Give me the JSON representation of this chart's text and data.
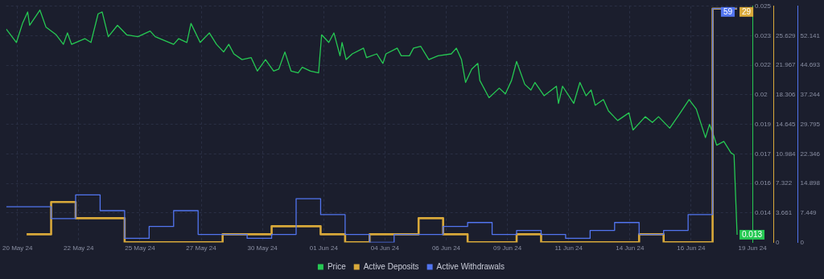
{
  "chart_data": {
    "type": "line",
    "grid": true,
    "legend": "bottom",
    "xlim": [
      "--05-19T13:00",
      "--06-19T00:00"
    ],
    "xticks": [
      {
        "value": "--05-20T00:00",
        "label": "20 May 24"
      },
      {
        "value": "--05-22T12:00",
        "label": "22 May 24"
      },
      {
        "value": "--05-25T00:00",
        "label": "25 May 24"
      },
      {
        "value": "--05-27T12:00",
        "label": "27 May 24"
      },
      {
        "value": "--05-30T00:00",
        "label": "30 May 24"
      },
      {
        "value": "--06-01T12:00",
        "label": "01 Jun 24"
      },
      {
        "value": "--06-04T00:00",
        "label": "04 Jun 24"
      },
      {
        "value": "--06-06T12:00",
        "label": "06 Jun 24"
      },
      {
        "value": "--06-09T00:00",
        "label": "09 Jun 24"
      },
      {
        "value": "--06-11T12:00",
        "label": "11 Jun 24"
      },
      {
        "value": "--06-14T00:00",
        "label": "14 Jun 24"
      },
      {
        "value": "--06-16T12:00",
        "label": "16 Jun 24"
      },
      {
        "value": "--06-19T00:00",
        "label": "19 Jun 24"
      }
    ],
    "ylim": [
      0.0126,
      0.025
    ],
    "yticks": [
      {
        "value": 0.01415,
        "label": "0.014"
      },
      {
        "value": 0.0157,
        "label": "0.016"
      },
      {
        "value": 0.01725,
        "label": "0.017"
      },
      {
        "value": 0.0188,
        "label": "0.019"
      },
      {
        "value": 0.02035,
        "label": "0.02"
      },
      {
        "value": 0.0219,
        "label": "0.022"
      },
      {
        "value": 0.02345,
        "label": "0.023"
      },
      {
        "value": 0.025,
        "label": "0.025"
      }
    ],
    "y2lim": [
      0,
      29.29
    ],
    "y2ticks": [
      0,
      3.661,
      7.322,
      10.984,
      14.645,
      18.306,
      21.967,
      25.629
    ],
    "y3lim": [
      0,
      59.59
    ],
    "y3ticks": [
      0,
      7.449,
      14.898,
      22.346,
      29.795,
      37.244,
      44.693,
      52.141
    ],
    "series": [
      {
        "name": "Price",
        "color": "#26c953",
        "x": [
          "--05-19T13:00",
          "--05-19T23:00",
          "--05-20T05:00",
          "--05-20T10:00",
          "--05-20T12:00",
          "--05-20T22:00",
          "--05-21T04:00",
          "--05-21T14:00",
          "--05-21T21:00",
          "--05-22T01:00",
          "--05-22T05:00",
          "--05-22T18:00",
          "--05-23T00:00",
          "--05-23T07:00",
          "--05-23T11:00",
          "--05-23T17:00",
          "--05-24T02:00",
          "--05-24T11:00",
          "--05-24T22:00",
          "--05-25T10:00",
          "--05-25T15:00",
          "--05-26T09:00",
          "--05-26T14:00",
          "--05-26T22:00",
          "--05-27T02:00",
          "--05-27T11:00",
          "--05-27T20:00",
          "--05-28T03:00",
          "--05-28T10:00",
          "--05-28T15:00",
          "--05-28T20:00",
          "--05-29T04:00",
          "--05-29T13:00",
          "--05-29T19:00",
          "--05-30T03:00",
          "--05-30T11:00",
          "--05-30T16:00",
          "--05-30T22:00",
          "--05-31T04:00",
          "--05-31T11:00",
          "--05-31T15:00",
          "--05-31T23:00",
          "--06-01T07:00",
          "--06-01T10:00",
          "--06-01T17:00",
          "--06-01T22:00",
          "--06-02T04:00",
          "--06-02T06:00",
          "--06-02T10:00",
          "--06-02T16:00",
          "--06-03T03:00",
          "--06-03T06:00",
          "--06-03T16:00",
          "--06-03T22:00",
          "--06-04T01:00",
          "--06-04T12:00",
          "--06-04T16:00",
          "--06-05T00:00",
          "--06-05T04:00",
          "--06-05T11:00",
          "--06-05T19:00",
          "--06-06T04:00",
          "--06-06T17:00",
          "--06-06T22:00",
          "--06-07T03:00",
          "--06-07T07:00",
          "--06-07T13:00",
          "--06-07T19:00",
          "--06-07T21:00",
          "--06-08T06:00",
          "--06-08T16:00",
          "--06-08T22:00",
          "--06-09T04:00",
          "--06-09T09:00",
          "--06-09T17:00",
          "--06-09T23:00",
          "--06-10T03:00",
          "--06-10T12:00",
          "--06-11T00:00",
          "--06-11T02:00",
          "--06-11T06:00",
          "--06-11T17:00",
          "--06-11T23:00",
          "--06-12T05:00",
          "--06-12T10:00",
          "--06-12T14:00",
          "--06-12T22:00",
          "--06-13T03:00",
          "--06-13T12:00",
          "--06-13T23:00",
          "--06-14T03:00",
          "--06-14T15:00",
          "--06-14T22:00",
          "--06-15T04:00",
          "--06-15T15:00",
          "--06-16T00:00",
          "--06-16T10:00",
          "--06-16T17:00",
          "--06-17T02:00",
          "--06-17T06:00",
          "--06-17T10:00",
          "--06-17T13:00",
          "--06-17T20:00",
          "--06-18T03:00",
          "--06-18T06:00",
          "--06-18T09:00"
        ],
        "values": [
          0.0238,
          0.0231,
          0.0241,
          0.0247,
          0.024,
          0.0248,
          0.0239,
          0.0235,
          0.023,
          0.0236,
          0.023,
          0.0233,
          0.0231,
          0.0246,
          0.0247,
          0.0234,
          0.024,
          0.0235,
          0.0234,
          0.0237,
          0.0234,
          0.023,
          0.0233,
          0.0231,
          0.0241,
          0.0231,
          0.0236,
          0.023,
          0.0226,
          0.023,
          0.0225,
          0.0222,
          0.0223,
          0.0216,
          0.0222,
          0.0216,
          0.0217,
          0.0226,
          0.0216,
          0.0215,
          0.0218,
          0.0216,
          0.0215,
          0.0235,
          0.0231,
          0.0236,
          0.0224,
          0.0231,
          0.0222,
          0.0225,
          0.0228,
          0.0223,
          0.0225,
          0.022,
          0.0225,
          0.0228,
          0.0224,
          0.0224,
          0.0228,
          0.0229,
          0.0222,
          0.0224,
          0.0225,
          0.0228,
          0.0222,
          0.021,
          0.0217,
          0.022,
          0.0211,
          0.0202,
          0.0207,
          0.0204,
          0.0211,
          0.0221,
          0.0209,
          0.0206,
          0.021,
          0.0203,
          0.0208,
          0.0199,
          0.0208,
          0.0199,
          0.021,
          0.0203,
          0.0206,
          0.0198,
          0.0201,
          0.0195,
          0.019,
          0.0194,
          0.0185,
          0.0192,
          0.0189,
          0.0192,
          0.0186,
          0.0193,
          0.0201,
          0.0196,
          0.0181,
          0.0188,
          0.0182,
          0.0177,
          0.0179,
          0.0173,
          0.0172,
          0.013
        ],
        "value_labels": [
          null,
          null,
          null,
          null,
          null,
          null,
          null,
          null,
          null,
          null,
          null,
          null,
          null,
          null,
          null,
          null,
          null,
          null,
          null,
          null,
          null,
          null,
          null,
          null,
          null,
          null,
          null,
          null,
          null,
          null,
          null,
          null,
          null,
          null,
          null,
          null,
          null,
          null,
          null,
          null,
          null,
          null,
          null,
          null,
          null,
          null,
          null,
          null,
          null,
          null,
          null,
          null,
          null,
          null,
          null,
          null,
          null,
          null,
          null,
          null,
          null,
          null,
          null,
          null,
          null,
          null,
          null,
          null,
          null,
          null,
          null,
          null,
          null,
          null,
          null,
          null,
          null,
          null,
          null,
          null,
          null,
          null,
          null,
          null,
          null,
          null,
          null,
          null,
          null,
          null,
          null,
          null,
          null,
          null,
          null,
          null,
          null,
          null,
          null,
          null,
          null,
          null,
          null,
          null,
          null,
          "0.013"
        ]
      },
      {
        "name": "Active Deposits",
        "type": "step",
        "axis": "y2",
        "color": "#d9a93a",
        "x": [
          "--05-20T09:00",
          "--05-21T09:00",
          "--05-22T09:00",
          "--05-23T09:00",
          "--05-24T09:00",
          "--05-25T09:00",
          "--05-26T09:00",
          "--05-27T09:00",
          "--05-28T09:00",
          "--05-29T09:00",
          "--05-30T09:00",
          "--05-31T09:00",
          "--06-01T09:00",
          "--06-02T09:00",
          "--06-03T09:00",
          "--06-04T09:00",
          "--06-05T09:00",
          "--06-06T09:00",
          "--06-07T09:00",
          "--06-08T09:00",
          "--06-09T09:00",
          "--06-10T09:00",
          "--06-11T09:00",
          "--06-12T09:00",
          "--06-13T09:00",
          "--06-14T09:00",
          "--06-15T09:00",
          "--06-16T09:00",
          "--06-17T09:00",
          "--06-18T09:00"
        ],
        "values": [
          1,
          5,
          3,
          3,
          0,
          0,
          0,
          0,
          1,
          1,
          2,
          2,
          1,
          0,
          1,
          1,
          3,
          1,
          0,
          0,
          1,
          0,
          0,
          0,
          0,
          1,
          0,
          0,
          29,
          29
        ],
        "value_labels": [
          null,
          null,
          null,
          null,
          null,
          null,
          null,
          null,
          null,
          null,
          null,
          null,
          null,
          null,
          null,
          null,
          null,
          null,
          null,
          null,
          null,
          null,
          null,
          null,
          null,
          null,
          null,
          null,
          null,
          "29"
        ]
      },
      {
        "name": "Active Withdrawals",
        "type": "step",
        "axis": "y3",
        "color": "#5275f0",
        "x": [
          "--05-19T13:00",
          "--05-20T09:00",
          "--05-21T09:00",
          "--05-22T09:00",
          "--05-23T09:00",
          "--05-24T09:00",
          "--05-25T09:00",
          "--05-26T09:00",
          "--05-27T09:00",
          "--05-28T09:00",
          "--05-29T09:00",
          "--05-30T09:00",
          "--05-31T09:00",
          "--06-01T09:00",
          "--06-02T09:00",
          "--06-03T09:00",
          "--06-04T09:00",
          "--06-05T09:00",
          "--06-06T09:00",
          "--06-07T09:00",
          "--06-08T09:00",
          "--06-09T09:00",
          "--06-10T09:00",
          "--06-11T09:00",
          "--06-12T09:00",
          "--06-13T09:00",
          "--06-14T09:00",
          "--06-15T09:00",
          "--06-16T09:00",
          "--06-17T09:00",
          "--06-18T09:00"
        ],
        "values": [
          9,
          9,
          6,
          12,
          8,
          1,
          4,
          8,
          2,
          2,
          1,
          2,
          11,
          7,
          2,
          0,
          2,
          2,
          4,
          5,
          2,
          3,
          2,
          1,
          3,
          5,
          2,
          3,
          7,
          59,
          59
        ],
        "value_labels": [
          null,
          null,
          null,
          null,
          null,
          null,
          null,
          null,
          null,
          null,
          null,
          null,
          null,
          null,
          null,
          null,
          null,
          null,
          null,
          null,
          null,
          null,
          null,
          null,
          null,
          null,
          null,
          null,
          null,
          null,
          "59"
        ]
      }
    ]
  }
}
